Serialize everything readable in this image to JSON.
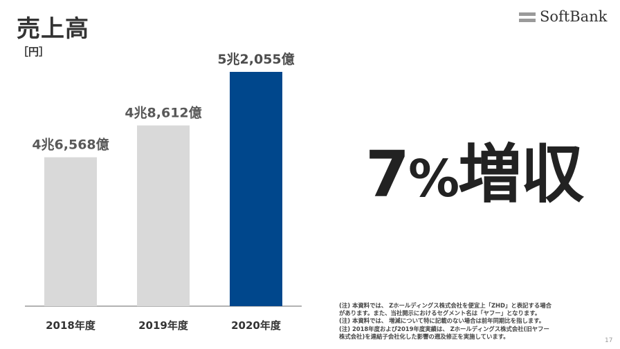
{
  "slide": {
    "title": "売上高",
    "brand": "SoftBank",
    "page_number": "17",
    "headline_number": "7",
    "headline_percent": "%",
    "headline_suffix": "増収",
    "notes": [
      "(注) 本資料では、 Zホールディングス株式会社を便宜上「ZHD」と表記する場合",
      "があります。また、当社開示におけるセグメント名は「ヤフー」となります。",
      "(注) 本資料では、 増減について特に記載のない場合は前年同期比を指します。",
      "(注) 2018年度および2019年度実績は、 Zホールディングス株式会社(旧ヤフー",
      "株式会社)を連結子会社化した影響の遡及修正を実施しています。"
    ]
  },
  "colors": {
    "bar_default": "#d9d9d9",
    "bar_highlight": "#00478c",
    "baseline": "#999999"
  },
  "chart_data": {
    "type": "bar",
    "title": "売上高",
    "ylabel": "［円］",
    "categories": [
      "2018年度",
      "2019年度",
      "2020年度"
    ],
    "values_oku_yen": [
      46568,
      48612,
      52055
    ],
    "data_labels": [
      "4兆6,568億",
      "4兆8,612億",
      "5兆2,055億"
    ],
    "highlight_index": 2,
    "ylim": [
      0,
      52055
    ],
    "grid": false,
    "legend": "none"
  }
}
